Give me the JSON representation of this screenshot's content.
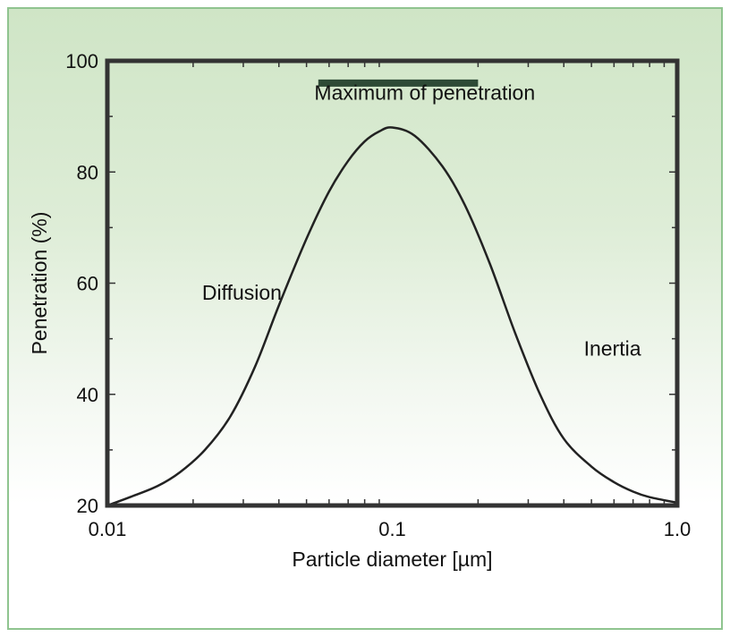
{
  "colors": {
    "panel_border": "#8fc48f",
    "gradient_top": "#cfe5c6",
    "gradient_bottom": "#ffffff",
    "frame": "#333333",
    "curve": "#222222",
    "max_bar": "#2e4a36"
  },
  "chart_data": {
    "type": "line",
    "title": "",
    "xlabel": "Particle diameter [µm]",
    "ylabel": "Penetration (%)",
    "x_scale": "log",
    "xlim": [
      0.01,
      1.0
    ],
    "ylim": [
      20,
      100
    ],
    "x_ticks": [
      0.01,
      0.1,
      1.0
    ],
    "x_tick_labels": [
      "0.01",
      "0.1",
      "1.0"
    ],
    "y_ticks": [
      20,
      40,
      60,
      80,
      100
    ],
    "y_tick_labels": [
      "20",
      "40",
      "60",
      "80",
      "100"
    ],
    "grid": false,
    "series": [
      {
        "x": [
          0.01,
          0.012,
          0.015,
          0.018,
          0.022,
          0.027,
          0.033,
          0.04,
          0.05,
          0.06,
          0.07,
          0.08,
          0.09,
          0.1,
          0.12,
          0.15,
          0.18,
          0.22,
          0.27,
          0.33,
          0.4,
          0.5,
          0.6,
          0.7,
          0.8,
          1.0
        ],
        "y": [
          20,
          21.5,
          23.5,
          26,
          30,
          36,
          45,
          56,
          68,
          76.5,
          82,
          85.5,
          87.3,
          88,
          86.5,
          81,
          74,
          63.5,
          51,
          40,
          32,
          27,
          24.2,
          22.5,
          21.5,
          20.5
        ]
      }
    ],
    "annotations": [
      {
        "text": "Maximum of penetration",
        "x": 0.13,
        "y": 93
      },
      {
        "text": "Diffusion",
        "x": 0.0215,
        "y": 57
      },
      {
        "text": "Inertia",
        "x": 0.47,
        "y": 47
      }
    ],
    "max_range_bar": {
      "x_start": 0.055,
      "x_end": 0.2,
      "y": 96
    }
  }
}
